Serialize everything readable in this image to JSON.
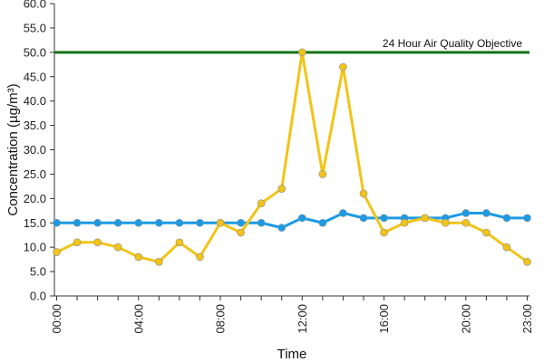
{
  "chart_data": {
    "type": "line",
    "xlabel": "Time",
    "ylabel": "Concentration (µg/m³)",
    "ylim": [
      0,
      60
    ],
    "ytick_step": 5,
    "ytick_labels": [
      "0.0",
      "5.0",
      "10.0",
      "15.0",
      "20.0",
      "25.0",
      "30.0",
      "35.0",
      "40.0",
      "45.0",
      "50.0",
      "55.0",
      "60.0"
    ],
    "x": [
      0,
      1,
      2,
      3,
      4,
      5,
      6,
      7,
      8,
      9,
      10,
      11,
      12,
      13,
      14,
      15,
      16,
      17,
      18,
      19,
      20,
      21,
      22,
      23
    ],
    "xtick_labels": [
      "00:00",
      "04:00",
      "08:00",
      "12:00",
      "16:00",
      "20:00",
      "23:00"
    ],
    "xtick_positions": [
      0,
      4,
      8,
      12,
      16,
      20,
      23
    ],
    "grid": false,
    "series": [
      {
        "color": "#1a9be6",
        "values": [
          15,
          15,
          15,
          15,
          15,
          15,
          15,
          15,
          15,
          15,
          15,
          14,
          16,
          15,
          17,
          16,
          16,
          16,
          16,
          16,
          17,
          17,
          16,
          16
        ]
      },
      {
        "color": "#f2c417",
        "values": [
          9,
          11,
          11,
          10,
          8,
          7,
          11,
          8,
          15,
          13,
          19,
          22,
          50,
          25,
          47,
          21,
          13,
          15,
          16,
          15,
          15,
          13,
          10,
          7
        ]
      }
    ],
    "reference_line": {
      "value": 50,
      "label": "24 Hour Air Quality Objective",
      "color": "#127312"
    }
  }
}
